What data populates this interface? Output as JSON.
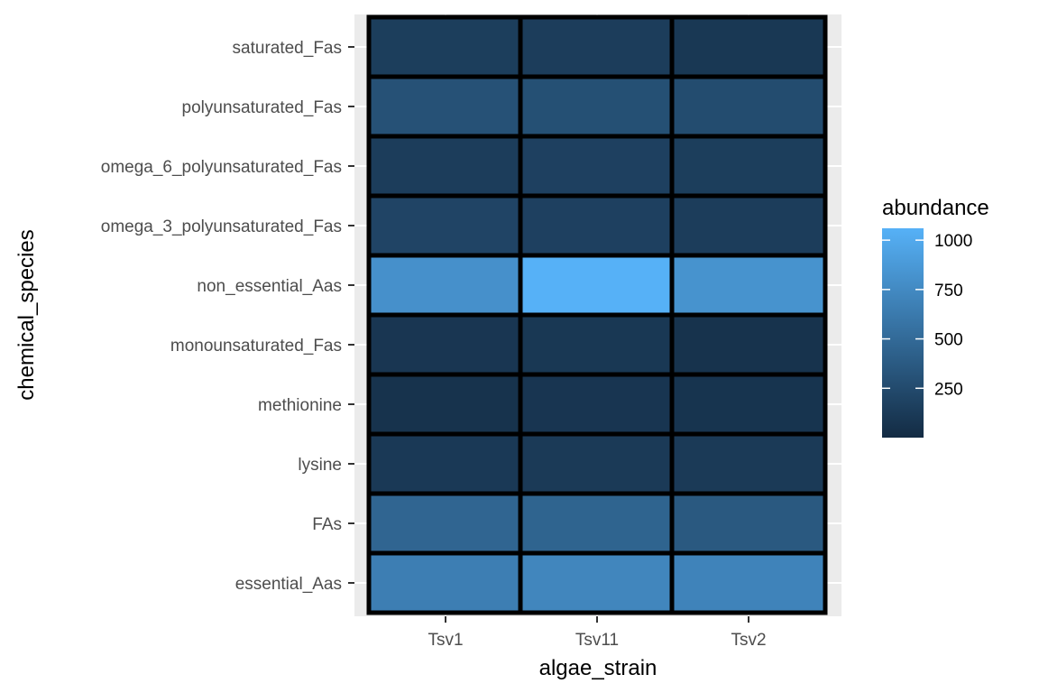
{
  "chart_data": {
    "type": "heatmap",
    "xlabel": "algae_strain",
    "ylabel": "chemical_species",
    "x_categories": [
      "Tsv1",
      "Tsv11",
      "Tsv2"
    ],
    "y_categories": [
      "essential_Aas",
      "FAs",
      "lysine",
      "methionine",
      "monounsaturated_Fas",
      "non_essential_Aas",
      "omega_3_polyunsaturated_Fas",
      "omega_6_polyunsaturated_Fas",
      "polyunsaturated_Fas",
      "saturated_Fas"
    ],
    "values": {
      "saturated_Fas": [
        150,
        140,
        100
      ],
      "polyunsaturated_Fas": [
        300,
        290,
        260
      ],
      "omega_6_polyunsaturated_Fas": [
        140,
        170,
        150
      ],
      "omega_3_polyunsaturated_Fas": [
        200,
        170,
        140
      ],
      "non_essential_Aas": [
        800,
        1060,
        820
      ],
      "monounsaturated_Fas": [
        90,
        100,
        60
      ],
      "methionine": [
        60,
        80,
        70
      ],
      "lysine": [
        110,
        120,
        120
      ],
      "FAs": [
        460,
        450,
        360
      ],
      "essential_Aas": [
        660,
        720,
        700
      ]
    },
    "legend": {
      "title": "abundance",
      "position": "right",
      "ticks": [
        250,
        500,
        750,
        1000
      ],
      "range": [
        0,
        1060
      ],
      "low_color": "#132B43",
      "high_color": "#56B1F7"
    },
    "grid": true,
    "panel_background": "#ebebeb",
    "tile_border_color": "#000000"
  }
}
